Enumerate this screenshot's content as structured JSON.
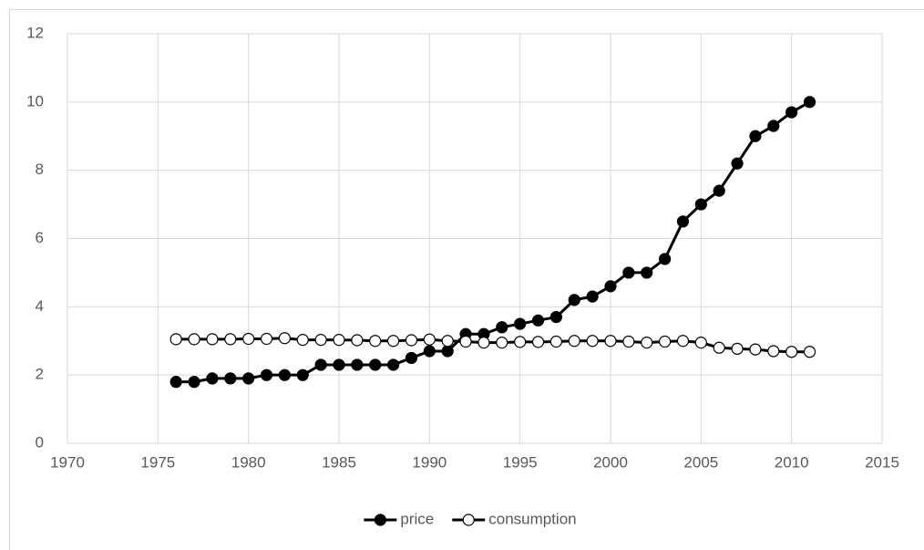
{
  "chart_data": {
    "type": "line",
    "x": [
      1976,
      1977,
      1978,
      1979,
      1980,
      1981,
      1982,
      1983,
      1984,
      1985,
      1986,
      1987,
      1988,
      1989,
      1990,
      1991,
      1992,
      1993,
      1994,
      1995,
      1996,
      1997,
      1998,
      1999,
      2000,
      2001,
      2002,
      2003,
      2004,
      2005,
      2006,
      2007,
      2008,
      2009,
      2010,
      2011
    ],
    "series": [
      {
        "name": "price",
        "color": "#000000",
        "marker_fill": "#000000",
        "values": [
          1.8,
          1.8,
          1.9,
          1.9,
          1.9,
          2.0,
          2.0,
          2.0,
          2.3,
          2.3,
          2.3,
          2.3,
          2.3,
          2.5,
          2.7,
          2.7,
          3.2,
          3.2,
          3.4,
          3.5,
          3.6,
          3.7,
          4.2,
          4.3,
          4.6,
          5.0,
          5.0,
          5.4,
          6.5,
          7.0,
          7.4,
          8.2,
          9.0,
          9.3,
          9.7,
          10.0
        ]
      },
      {
        "name": "consumption",
        "color": "#000000",
        "marker_fill": "#ffffff",
        "values": [
          3.05,
          3.05,
          3.05,
          3.05,
          3.06,
          3.06,
          3.08,
          3.03,
          3.03,
          3.03,
          3.02,
          3.0,
          3.0,
          3.02,
          3.04,
          3.0,
          2.98,
          2.95,
          2.95,
          2.97,
          2.97,
          2.98,
          3.0,
          3.0,
          3.0,
          2.98,
          2.95,
          2.98,
          3.0,
          2.95,
          2.8,
          2.77,
          2.75,
          2.7,
          2.68,
          2.68
        ]
      }
    ],
    "xlim": [
      1970,
      2015
    ],
    "xticks": [
      1970,
      1975,
      1980,
      1985,
      1990,
      1995,
      2000,
      2005,
      2010,
      2015
    ],
    "ylim": [
      0,
      12
    ],
    "yticks": [
      0,
      2,
      4,
      6,
      8,
      10,
      12
    ],
    "grid": true,
    "legend": "bottom"
  }
}
